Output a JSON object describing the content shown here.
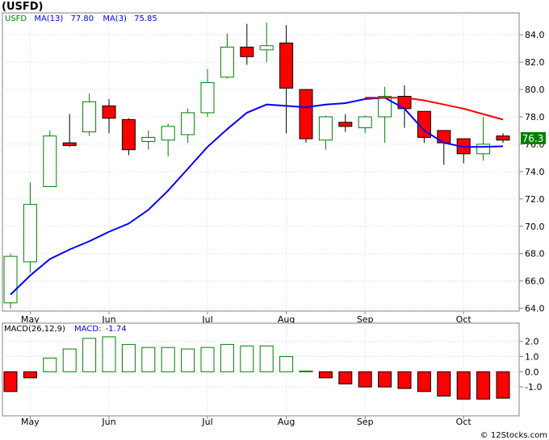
{
  "title": "(USFD)",
  "watermark": "© 12Stocks.com",
  "chart_data": [
    {
      "type": "candlestick",
      "symbol": "USFD",
      "legend": {
        "symbol": "USFD",
        "ma13_label": "MA(13)",
        "ma13_value": "77.80",
        "ma3_label": "MA(3)",
        "ma3_value": "75.85"
      },
      "last_price_label": "76.3",
      "ylim": [
        63.8,
        85.6
      ],
      "y_ticks": [
        "64.0",
        "66.0",
        "68.0",
        "70.0",
        "72.0",
        "74.0",
        "76.0",
        "78.0",
        "80.0",
        "82.0",
        "84.0"
      ],
      "y_tick_values": [
        64,
        66,
        68,
        70,
        72,
        74,
        76,
        78,
        80,
        82,
        84
      ],
      "x_tick_labels": [
        "May",
        "Jun",
        "Jul",
        "Aug",
        "Sep",
        "Oct"
      ],
      "x_tick_index": [
        1,
        5,
        10,
        14,
        18,
        23
      ],
      "colors": {
        "up": "#008000",
        "down": "#ff0000",
        "ma3": "#0000ff",
        "ma13": "#ff0000",
        "frame": "#808080",
        "grid": "#d8d8d8",
        "label_bg": "#008000"
      },
      "candles": [
        {
          "o": 64.4,
          "h": 68.0,
          "l": 64.0,
          "c": 67.8
        },
        {
          "o": 67.4,
          "h": 73.2,
          "l": 66.6,
          "c": 71.6
        },
        {
          "o": 72.9,
          "h": 77.0,
          "l": 72.9,
          "c": 76.6
        },
        {
          "o": 76.1,
          "h": 78.2,
          "l": 75.8,
          "c": 75.9
        },
        {
          "o": 76.9,
          "h": 79.7,
          "l": 76.6,
          "c": 79.1
        },
        {
          "o": 78.8,
          "h": 79.3,
          "l": 76.8,
          "c": 77.9
        },
        {
          "o": 77.8,
          "h": 77.9,
          "l": 75.2,
          "c": 75.6
        },
        {
          "o": 76.2,
          "h": 77.0,
          "l": 75.6,
          "c": 76.5
        },
        {
          "o": 76.3,
          "h": 77.5,
          "l": 75.1,
          "c": 77.3
        },
        {
          "o": 76.7,
          "h": 78.6,
          "l": 76.1,
          "c": 78.3
        },
        {
          "o": 78.3,
          "h": 81.5,
          "l": 78.0,
          "c": 80.5
        },
        {
          "o": 80.9,
          "h": 84.1,
          "l": 80.8,
          "c": 83.1
        },
        {
          "o": 83.1,
          "h": 84.8,
          "l": 81.8,
          "c": 82.4
        },
        {
          "o": 82.9,
          "h": 84.9,
          "l": 82.0,
          "c": 83.2
        },
        {
          "o": 83.4,
          "h": 84.7,
          "l": 76.8,
          "c": 80.1
        },
        {
          "o": 80.0,
          "h": 80.0,
          "l": 76.1,
          "c": 76.4
        },
        {
          "o": 76.3,
          "h": 78.1,
          "l": 75.6,
          "c": 78.0
        },
        {
          "o": 77.6,
          "h": 78.2,
          "l": 76.9,
          "c": 77.3
        },
        {
          "o": 77.2,
          "h": 78.1,
          "l": 76.8,
          "c": 78.0
        },
        {
          "o": 78.0,
          "h": 80.2,
          "l": 76.1,
          "c": 79.5
        },
        {
          "o": 79.5,
          "h": 80.3,
          "l": 77.2,
          "c": 78.6
        },
        {
          "o": 78.4,
          "h": 78.4,
          "l": 76.1,
          "c": 76.5
        },
        {
          "o": 77.0,
          "h": 77.0,
          "l": 74.5,
          "c": 76.1
        },
        {
          "o": 76.4,
          "h": 76.4,
          "l": 74.6,
          "c": 75.3
        },
        {
          "o": 75.3,
          "h": 78.0,
          "l": 74.8,
          "c": 76.0
        },
        {
          "o": 76.6,
          "h": 76.8,
          "l": 76.1,
          "c": 76.3
        }
      ],
      "ma3": [
        65.0,
        66.4,
        67.6,
        68.3,
        68.9,
        69.6,
        70.2,
        71.2,
        72.6,
        74.2,
        75.8,
        77.1,
        78.3,
        78.9,
        78.8,
        78.7,
        78.9,
        79.0,
        79.3,
        79.4,
        78.6,
        77.0,
        76.1,
        75.8,
        75.8,
        75.85
      ],
      "ma13": [
        null,
        null,
        null,
        null,
        null,
        null,
        null,
        null,
        null,
        null,
        null,
        null,
        null,
        null,
        null,
        null,
        null,
        null,
        79.4,
        79.4,
        79.4,
        79.2,
        78.9,
        78.6,
        78.2,
        77.8
      ]
    },
    {
      "type": "bar",
      "legend": {
        "label": "MACD(26,12,9)",
        "value_label": "MACD:",
        "value": "-1.74"
      },
      "ylim": [
        -2.9,
        3.2
      ],
      "y_ticks": [
        "2.0",
        "1.0",
        "0.0",
        "-1.0"
      ],
      "y_tick_values": [
        2.0,
        1.0,
        0.0,
        -1.0
      ],
      "x_tick_labels": [
        "May",
        "Jun",
        "Jul",
        "Aug",
        "Sep",
        "Oct"
      ],
      "x_tick_index": [
        1,
        5,
        10,
        14,
        18,
        23
      ],
      "values": [
        -1.3,
        -0.4,
        0.9,
        1.5,
        2.2,
        2.3,
        1.8,
        1.6,
        1.6,
        1.5,
        1.6,
        1.8,
        1.7,
        1.7,
        1.0,
        0.05,
        -0.4,
        -0.8,
        -1.0,
        -1.0,
        -1.1,
        -1.3,
        -1.6,
        -1.8,
        -1.8,
        -1.74
      ]
    }
  ]
}
